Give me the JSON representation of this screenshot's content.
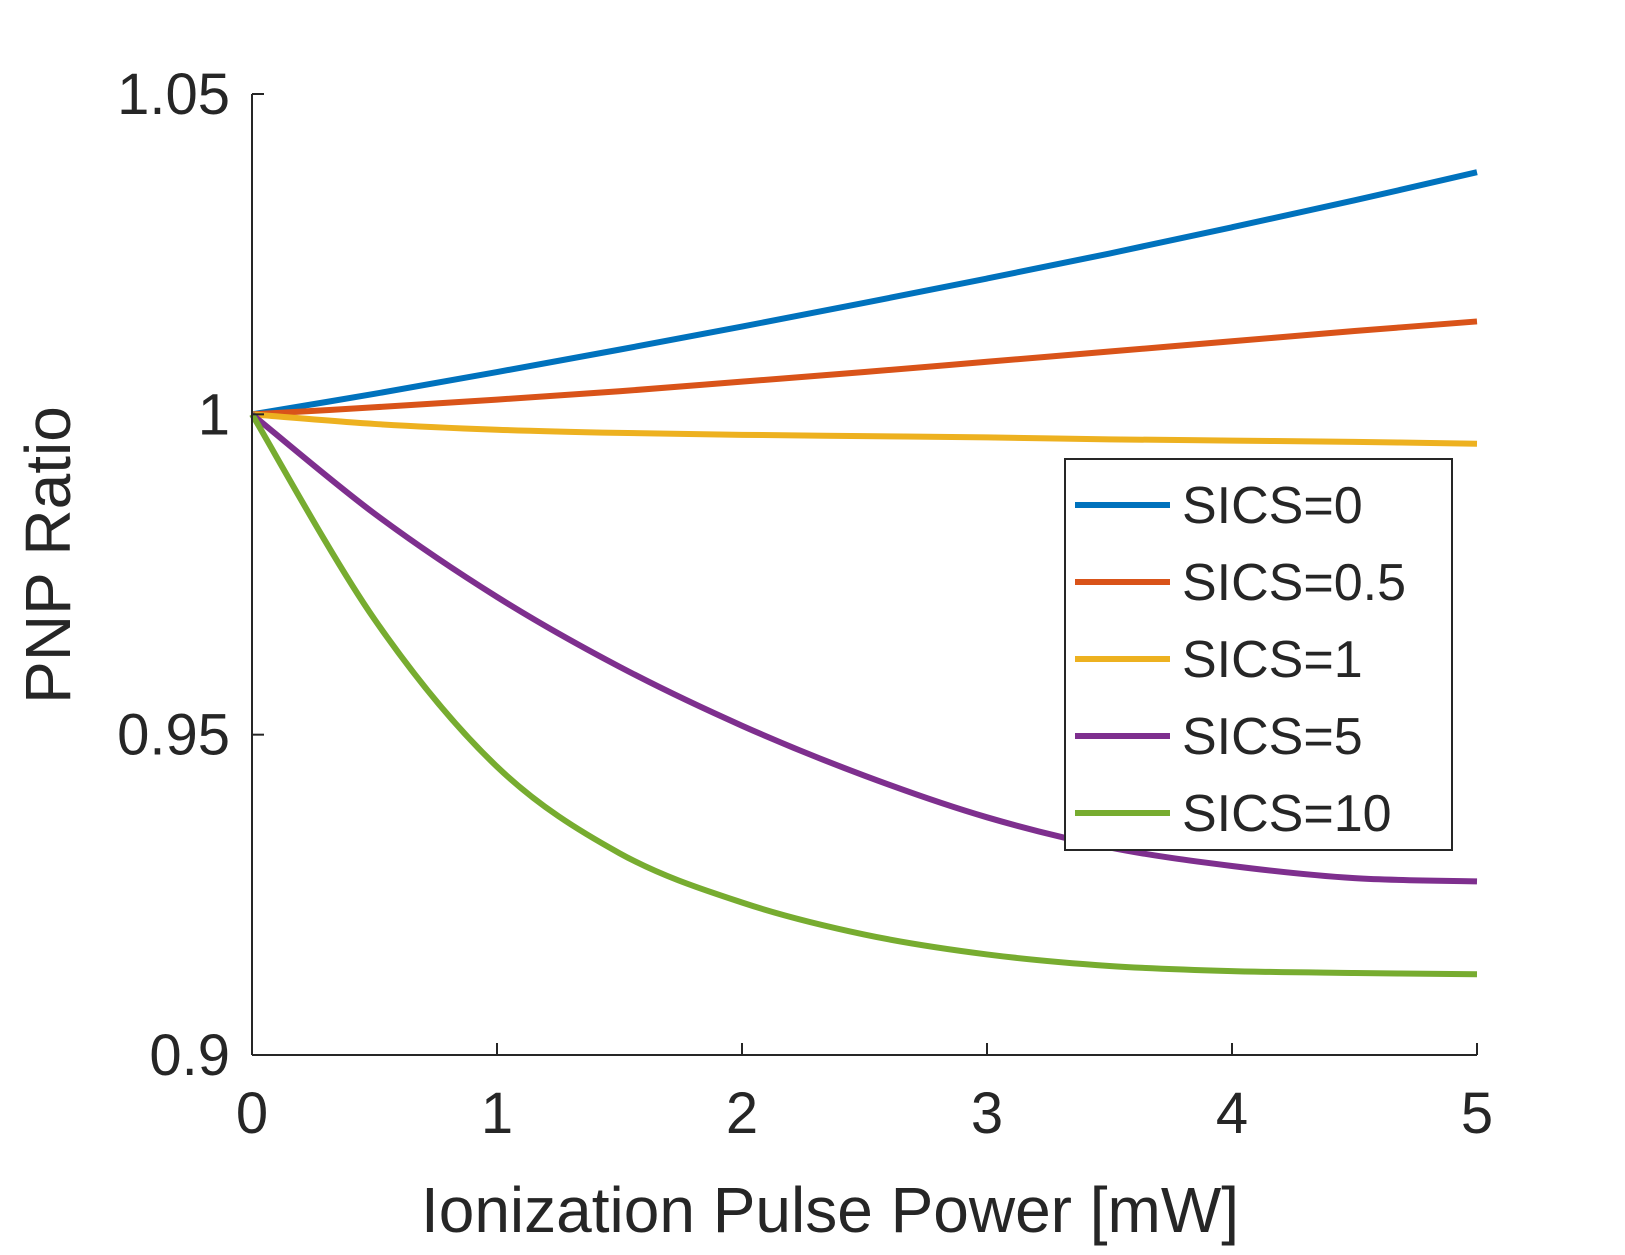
{
  "chart_data": {
    "type": "line",
    "xlabel": "Ionization Pulse Power [mW]",
    "ylabel": "PNP Ratio",
    "xlim": [
      0,
      5
    ],
    "ylim": [
      0.9,
      1.05
    ],
    "x_ticks": [
      0,
      1,
      2,
      3,
      4,
      5
    ],
    "x_tick_labels": [
      "0",
      "1",
      "2",
      "3",
      "4",
      "5"
    ],
    "y_ticks": [
      0.9,
      0.95,
      1,
      1.05
    ],
    "y_tick_labels": [
      "0.9",
      "0.95",
      "1",
      "1.05"
    ],
    "grid": false,
    "legend_position": "right",
    "x": [
      0,
      0.5,
      1,
      1.5,
      2,
      2.5,
      3,
      3.5,
      4,
      4.5,
      5
    ],
    "series": [
      {
        "name": "SICS=0",
        "color": "#0072BD",
        "values": [
          1.0,
          1.0032,
          1.0066,
          1.0101,
          1.0137,
          1.0174,
          1.0212,
          1.0251,
          1.0292,
          1.0334,
          1.0378
        ]
      },
      {
        "name": "SICS=0.5",
        "color": "#D95319",
        "values": [
          1.0,
          1.0011,
          1.0023,
          1.0036,
          1.0051,
          1.0066,
          1.0082,
          1.0098,
          1.0114,
          1.013,
          1.0145
        ]
      },
      {
        "name": "SICS=1",
        "color": "#EDB120",
        "values": [
          1.0,
          0.9985,
          0.9976,
          0.9971,
          0.9968,
          0.9966,
          0.9964,
          0.9961,
          0.9959,
          0.9957,
          0.9954
        ]
      },
      {
        "name": "SICS=5",
        "color": "#7E2F8E",
        "values": [
          1.0,
          0.9845,
          0.9715,
          0.9606,
          0.9514,
          0.9436,
          0.9371,
          0.9324,
          0.9295,
          0.9276,
          0.9271
        ]
      },
      {
        "name": "SICS=10",
        "color": "#77AC30",
        "values": [
          1.0,
          0.968,
          0.945,
          0.9315,
          0.9238,
          0.9188,
          0.9157,
          0.9139,
          0.9131,
          0.9128,
          0.9126
        ]
      }
    ]
  }
}
